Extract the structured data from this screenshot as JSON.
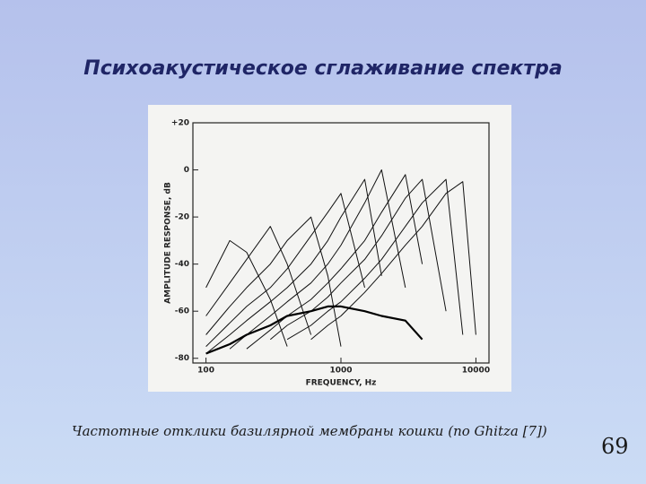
{
  "title": "Психоакустическое сглаживание спектра",
  "caption": "Частотные отклики базилярной мембраны кошки (по Ghitza [7])",
  "page_number": "69",
  "chart_data": {
    "type": "line",
    "xlabel": "FREQUENCY, Hz",
    "ylabel": "AMPLITUDE RESPONSE, dB",
    "xscale": "log",
    "xlim": [
      80,
      12500
    ],
    "xticks": [
      100,
      1000,
      10000
    ],
    "ylim": [
      -82,
      20
    ],
    "yticks": [
      {
        "value": 20,
        "label": "+20"
      },
      0,
      -20,
      -40,
      -60,
      -80
    ],
    "x": [
      100,
      150,
      200,
      300,
      400,
      600,
      800,
      1000,
      1500,
      2000,
      3000,
      4000,
      6000,
      8000,
      10000
    ],
    "series": [
      {
        "color": "#111111",
        "values": [
          -50,
          -30,
          -35,
          -55,
          -75,
          null,
          null,
          null,
          null,
          null,
          null,
          null,
          null,
          null,
          null
        ]
      },
      {
        "color": "#111111",
        "values": [
          -62,
          -48,
          -38,
          -24,
          -40,
          -70,
          null,
          null,
          null,
          null,
          null,
          null,
          null,
          null,
          null
        ]
      },
      {
        "color": "#111111",
        "values": [
          -70,
          -58,
          -50,
          -40,
          -30,
          -20,
          -45,
          -75,
          null,
          null,
          null,
          null,
          null,
          null,
          null
        ]
      },
      {
        "color": "#111111",
        "values": [
          -75,
          -65,
          -58,
          -50,
          -42,
          -28,
          -18,
          -10,
          -50,
          null,
          null,
          null,
          null,
          null,
          null
        ]
      },
      {
        "color": "#111111",
        "values": [
          -78,
          -70,
          -64,
          -56,
          -50,
          -40,
          -30,
          -20,
          -4,
          -45,
          null,
          null,
          null,
          null,
          null
        ]
      },
      {
        "color": "#111111",
        "values": [
          null,
          -76,
          -70,
          -62,
          -56,
          -48,
          -40,
          -32,
          -14,
          0,
          -50,
          null,
          null,
          null,
          null
        ]
      },
      {
        "color": "#111111",
        "values": [
          null,
          null,
          -76,
          -68,
          -62,
          -55,
          -48,
          -42,
          -30,
          -18,
          -2,
          -40,
          null,
          null,
          null
        ]
      },
      {
        "color": "#111111",
        "values": [
          null,
          null,
          null,
          -72,
          -66,
          -60,
          -54,
          -48,
          -38,
          -28,
          -12,
          -4,
          -60,
          null,
          null
        ]
      },
      {
        "color": "#111111",
        "values": [
          null,
          null,
          null,
          null,
          -72,
          -66,
          -60,
          -56,
          -46,
          -38,
          -24,
          -14,
          -4,
          -70,
          null
        ]
      },
      {
        "color": "#111111",
        "values": [
          null,
          null,
          null,
          null,
          null,
          -72,
          -66,
          -62,
          -52,
          -44,
          -32,
          -24,
          -10,
          -5,
          -70
        ]
      },
      {
        "color": "#000000",
        "values": [
          -78,
          -74,
          -70,
          -66,
          -62,
          -60,
          -58,
          -58,
          -60,
          -62,
          -64,
          -72,
          null,
          null,
          null
        ]
      }
    ]
  }
}
